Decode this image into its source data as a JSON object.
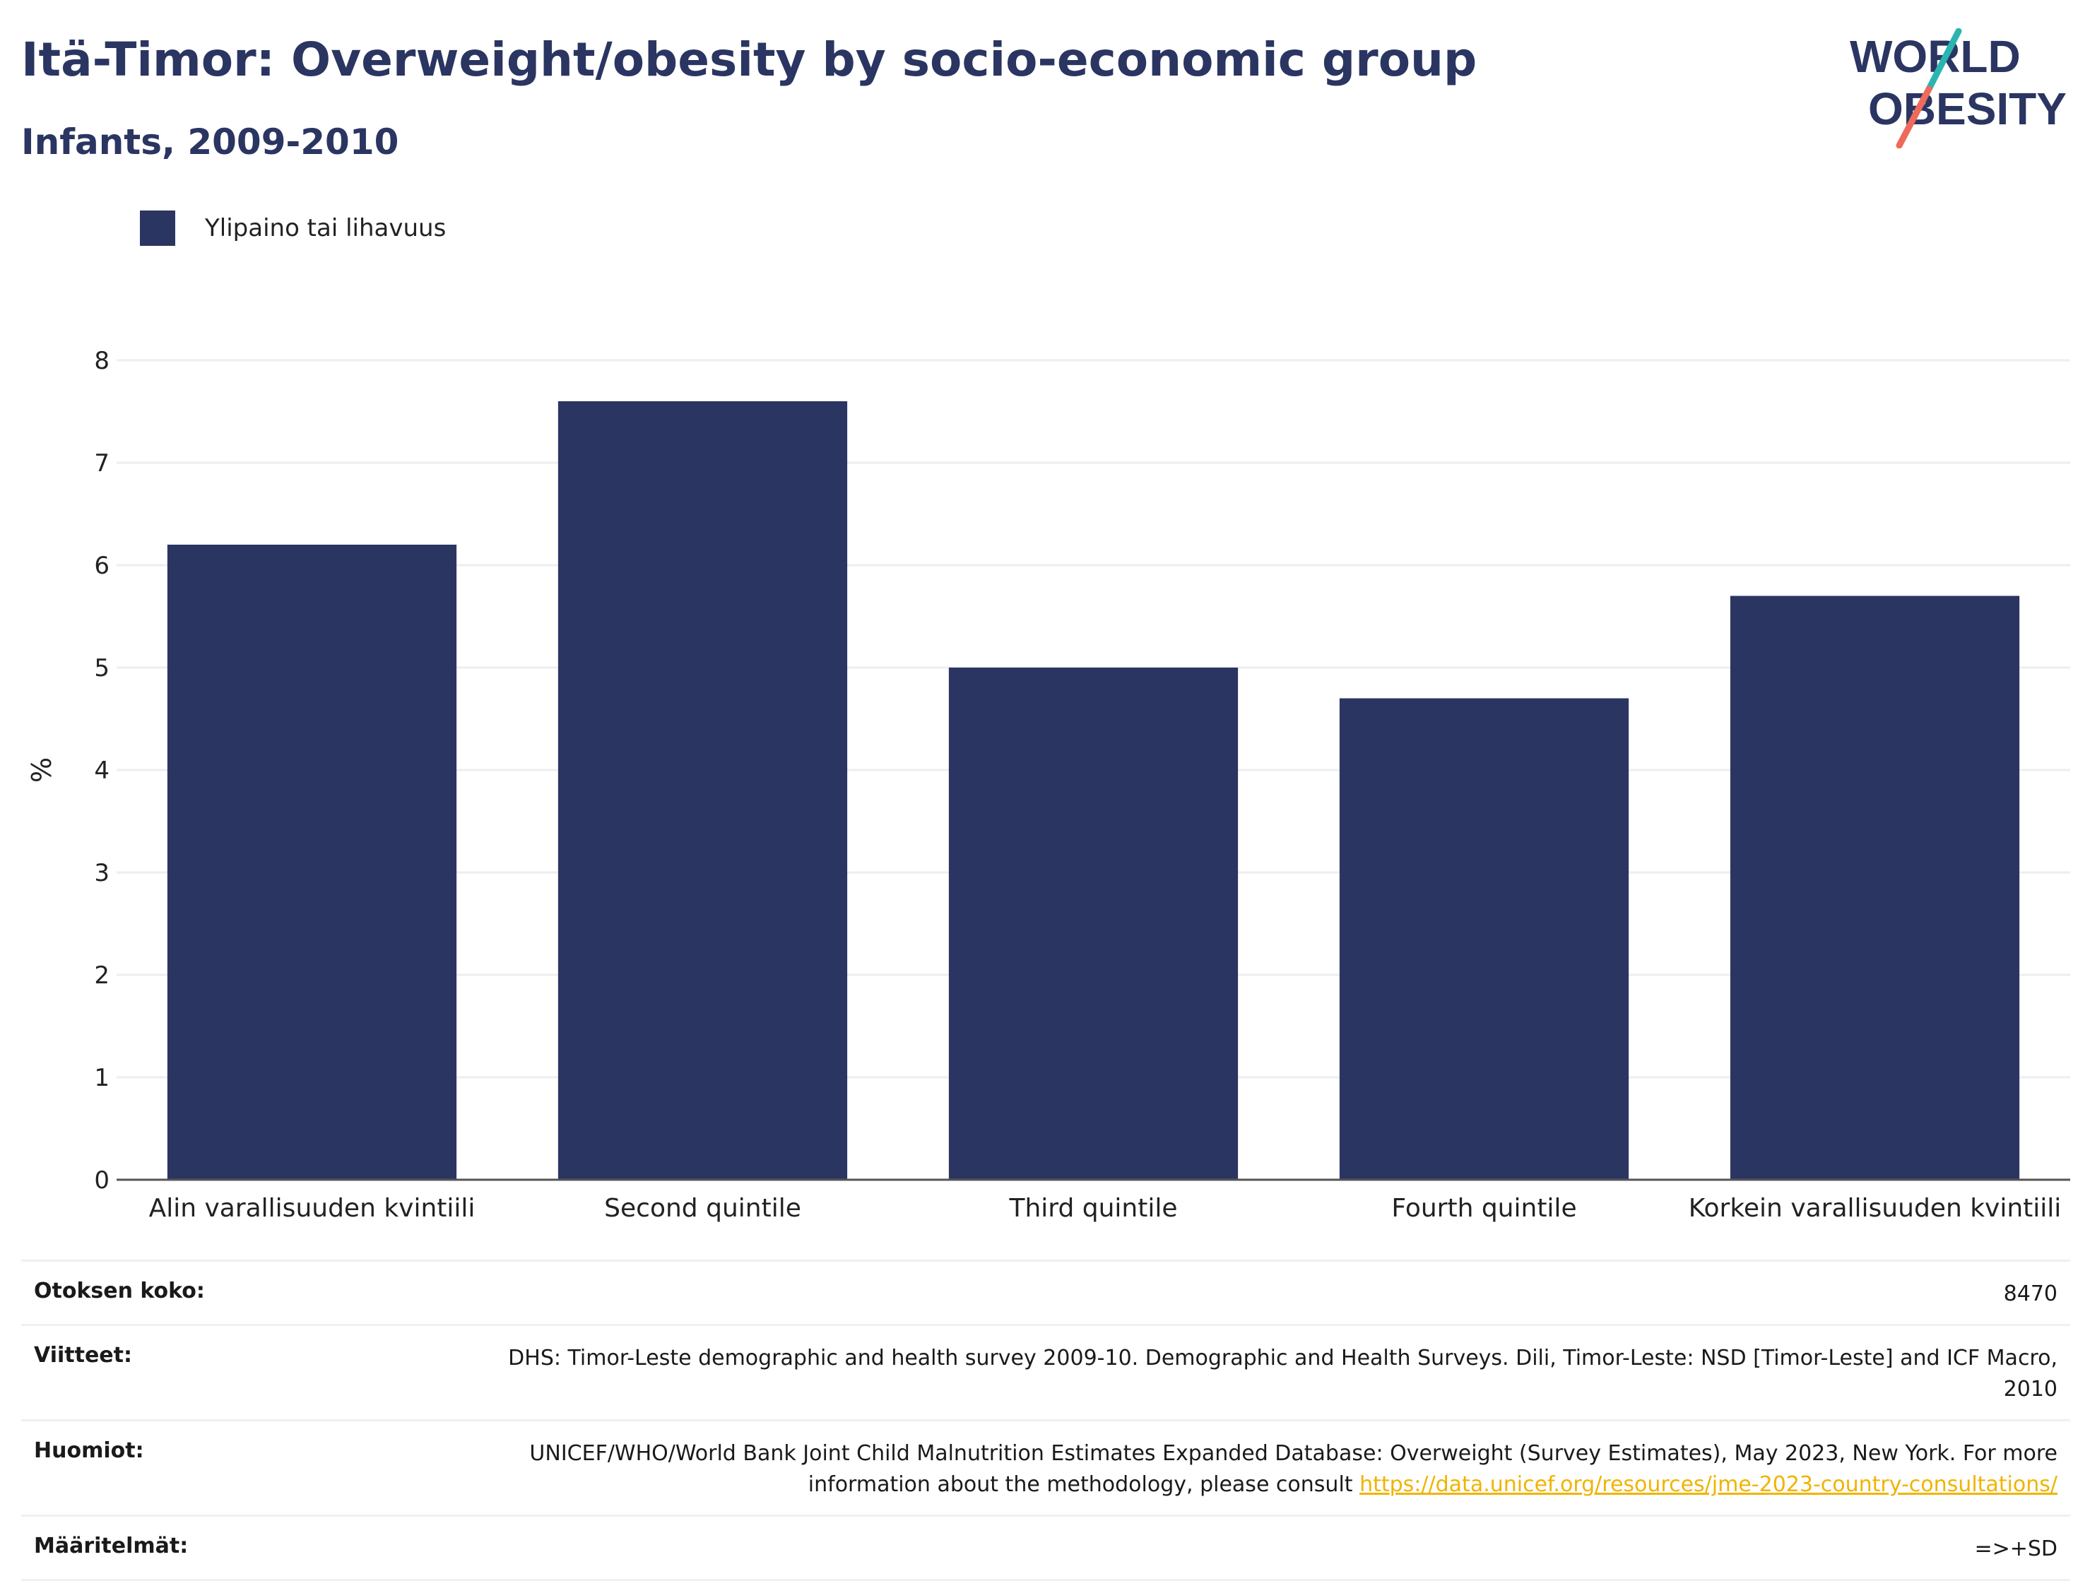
{
  "header": {
    "title": "Itä-Timor: Overweight/obesity by socio-economic group",
    "subtitle": "Infants, 2009-2010"
  },
  "logo": {
    "line1": "WORLD",
    "line2": "OBESITY"
  },
  "legend": {
    "label": "Ylipaino tai lihavuus",
    "color": "#2b3562"
  },
  "chart_data": {
    "type": "bar",
    "categories": [
      "Alin varallisuuden kvintiili",
      "Second quintile",
      "Third quintile",
      "Fourth quintile",
      "Korkein varallisuuden kvintiili"
    ],
    "series": [
      {
        "name": "Ylipaino tai lihavuus",
        "values": [
          6.2,
          7.6,
          5.0,
          4.7,
          5.7
        ]
      }
    ],
    "ylabel": "%",
    "ylim": [
      0,
      8
    ],
    "yticks": [
      0,
      1,
      2,
      3,
      4,
      5,
      6,
      7,
      8
    ],
    "grid": true,
    "bar_color": "#2b3562",
    "legend_position": "top-left"
  },
  "info": {
    "sample_label": "Otoksen koko:",
    "sample_value": "8470",
    "refs_label": "Viitteet:",
    "refs_value": "DHS: Timor-Leste demographic and health survey 2009-10. Demographic and Health Surveys. Dili, Timor-Leste: NSD [Timor-Leste] and ICF Macro, 2010",
    "notes_label": "Huomiot:",
    "notes_text": "UNICEF/WHO/World Bank Joint Child Malnutrition Estimates Expanded Database: Overweight (Survey Estimates), May 2023, New York. For more information about the methodology, please consult",
    "notes_link": "https://data.unicef.org/resources/jme-2023-country-consultations/",
    "defs_label": "Määritelmät:",
    "defs_value": "=>+SD"
  }
}
